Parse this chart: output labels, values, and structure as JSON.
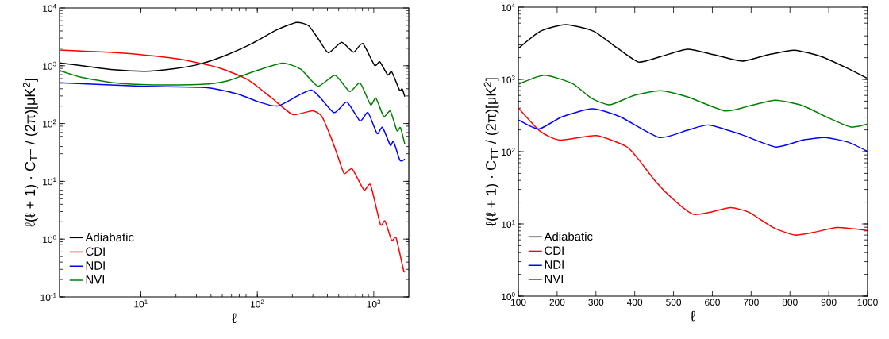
{
  "chart_data": [
    {
      "type": "line",
      "log": "xy",
      "xlabel": "ℓ",
      "ylabel": "ℓ(ℓ + 1) · C$_{TT}$ / (2π)[μK$^{2}$]",
      "legend": "bottom left",
      "grid": false,
      "line_style": "solid",
      "marker": "none",
      "xlim": [
        2,
        2000
      ],
      "ylim": [
        0.1,
        10000
      ],
      "xticks": [
        {
          "value": 10,
          "label": "10$^{1}$"
        },
        {
          "value": 100,
          "label": "10$^{2}$"
        },
        {
          "value": 1000,
          "label": "10$^{3}$"
        }
      ],
      "yticks": [
        {
          "value": 0.1,
          "label": "10$^{-1}$"
        },
        {
          "value": 1,
          "label": "10$^{0}$"
        },
        {
          "value": 10,
          "label": "10$^{1}$"
        },
        {
          "value": 100,
          "label": "10$^{2}$"
        },
        {
          "value": 1000,
          "label": "10$^{3}$"
        },
        {
          "value": 10000,
          "label": "10$^{4}$"
        }
      ],
      "series": [
        {
          "name": "Adiabatic",
          "color": "#000000",
          "x": [
            2,
            3.5,
            5.8,
            10.9,
            19.4,
            32.7,
            55,
            92,
            148,
            218,
            276,
            340,
            408,
            530,
            670,
            804,
            1016,
            1128,
            1318,
            1426,
            1667,
            1755,
            1849
          ],
          "values": [
            1120,
            970,
            855,
            805,
            890,
            1080,
            1550,
            2480,
            4200,
            5620,
            4910,
            2760,
            1670,
            2540,
            1720,
            2430,
            1020,
            1170,
            693,
            786,
            378,
            398,
            291
          ]
        },
        {
          "name": "CDI",
          "color": "#ff0000",
          "x": [
            2,
            7.6,
            21.5,
            47,
            83,
            133,
            202,
            298,
            358,
            430,
            490,
            558,
            652,
            824,
            939,
            1140,
            1250,
            1426,
            1556,
            1803,
            1849
          ],
          "values": [
            1875,
            1640,
            1300,
            920,
            574,
            276,
            143,
            167,
            133,
            57,
            27.6,
            13.6,
            16.4,
            7.1,
            8.7,
            1.8,
            2.06,
            0.95,
            1.05,
            0.29,
            0.28
          ]
        },
        {
          "name": "NDI",
          "color": "#0000ff",
          "x": [
            2,
            9.8,
            36,
            68,
            103,
            152,
            291,
            453,
            587,
            763,
            892,
            1069,
            1188,
            1389,
            1479,
            1683,
            1849
          ],
          "values": [
            507,
            442,
            420,
            323,
            236,
            202,
            378,
            155,
            236,
            111,
            155,
            67,
            86,
            42,
            49,
            22.9,
            24.3
          ]
        },
        {
          "name": "NVI",
          "color": "#008000",
          "x": [
            2,
            3,
            5.8,
            12.8,
            33,
            55,
            92,
            164,
            236,
            331,
            465,
            620,
            763,
            939,
            1042,
            1219,
            1389,
            1581,
            1693,
            1849
          ],
          "values": [
            828,
            638,
            507,
            466,
            475,
            545,
            786,
            1110,
            873,
            442,
            686,
            359,
            501,
            212,
            276,
            133,
            164,
            75,
            85,
            44
          ]
        }
      ]
    },
    {
      "type": "line",
      "log": "y",
      "xlabel": "ℓ",
      "ylabel": "ℓ(ℓ + 1) · C$_{TT}$ / (2π)[μK$^{2}$]",
      "legend": "bottom left",
      "grid": false,
      "line_style": "solid",
      "marker": "none",
      "xlim": [
        100,
        1000
      ],
      "ylim": [
        1,
        10000
      ],
      "xticks": [
        100,
        200,
        300,
        400,
        500,
        600,
        700,
        800,
        900,
        1000
      ],
      "yticks": [
        {
          "value": 1,
          "label": "10$^{0}$"
        },
        {
          "value": 10,
          "label": "10$^{1}$"
        },
        {
          "value": 100,
          "label": "10$^{2}$"
        },
        {
          "value": 1000,
          "label": "10$^{3}$"
        },
        {
          "value": 10000,
          "label": "10$^{4}$"
        }
      ],
      "series": [
        {
          "name": "Adiabatic",
          "color": "#000000",
          "x": [
            101,
            157,
            222,
            294,
            357,
            410,
            467,
            536,
            605,
            677,
            743,
            812,
            881,
            950,
            998
          ],
          "values": [
            2710,
            4640,
            5740,
            4640,
            2670,
            1740,
            2070,
            2620,
            2190,
            1790,
            2190,
            2540,
            2070,
            1410,
            1040
          ]
        },
        {
          "name": "CDI",
          "color": "#ff0000",
          "x": [
            101,
            157,
            208,
            301,
            377,
            406,
            454,
            502,
            550,
            592,
            647,
            695,
            757,
            812,
            860,
            922,
            998
          ],
          "values": [
            398,
            190,
            144,
            167,
            119,
            83,
            38.5,
            21.2,
            13.6,
            14.4,
            16.8,
            14.4,
            8.9,
            7.0,
            7.6,
            8.9,
            8.1
          ]
        },
        {
          "name": "NDI",
          "color": "#0000ff",
          "x": [
            101,
            153,
            212,
            291,
            363,
            463,
            536,
            591,
            673,
            763,
            832,
            891,
            950,
            998
          ],
          "values": [
            274,
            206,
            303,
            392,
            303,
            157,
            198,
            234,
            174,
            116,
            144,
            157,
            135,
            102
          ]
        },
        {
          "name": "NVI",
          "color": "#008000",
          "x": [
            101,
            167,
            239,
            288,
            336,
            398,
            467,
            536,
            632,
            694,
            763,
            832,
            901,
            957,
            998
          ],
          "values": [
            858,
            1140,
            880,
            551,
            445,
            600,
            699,
            574,
            366,
            427,
            514,
            434,
            290,
            219,
            239
          ]
        }
      ]
    }
  ]
}
